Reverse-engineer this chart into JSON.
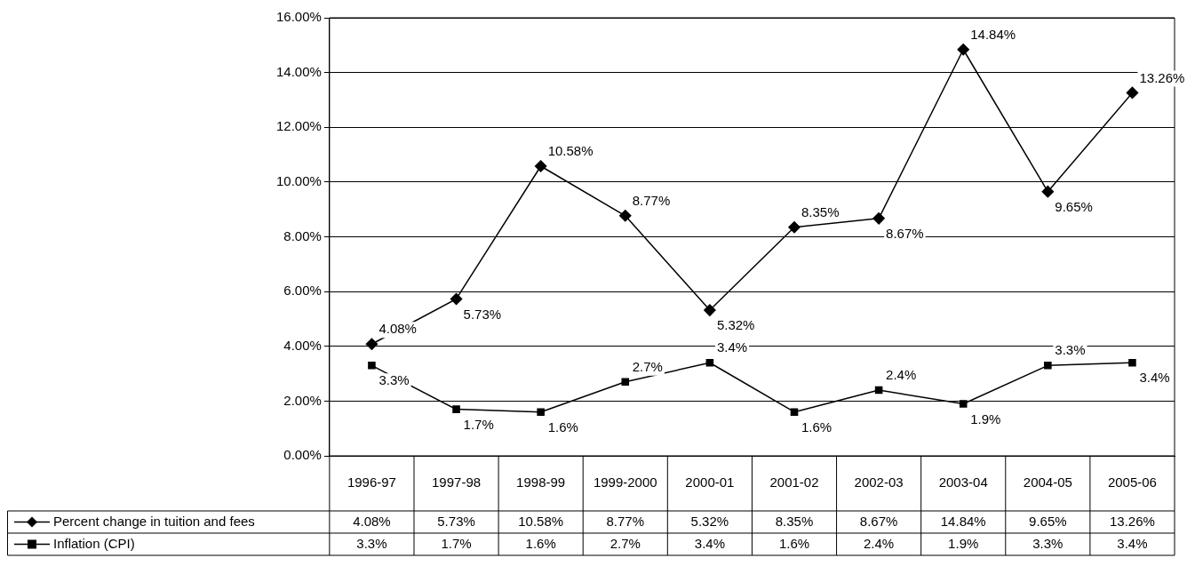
{
  "chart_data": {
    "type": "line",
    "categories": [
      "1996-97",
      "1997-98",
      "1998-99",
      "1999-2000",
      "2000-01",
      "2001-02",
      "2002-03",
      "2003-04",
      "2004-05",
      "2005-06"
    ],
    "series": [
      {
        "name": "Percent change in tuition and fees",
        "color": "#000000",
        "marker": "diamond",
        "values": [
          4.08,
          5.73,
          10.58,
          8.77,
          5.32,
          8.35,
          8.67,
          14.84,
          9.65,
          13.26
        ],
        "value_labels": [
          "4.08%",
          "5.73%",
          "10.58%",
          "8.77%",
          "5.32%",
          "8.35%",
          "8.67%",
          "14.84%",
          "9.65%",
          "13.26%"
        ]
      },
      {
        "name": "Inflation (CPI)",
        "color": "#000000",
        "marker": "square",
        "values": [
          3.3,
          1.7,
          1.6,
          2.7,
          3.4,
          1.6,
          2.4,
          1.9,
          3.3,
          3.4
        ],
        "value_labels": [
          "3.3%",
          "1.7%",
          "1.6%",
          "2.7%",
          "3.4%",
          "1.6%",
          "2.4%",
          "1.9%",
          "3.3%",
          "3.4%"
        ]
      }
    ],
    "ylim": [
      0,
      16
    ],
    "yticks": [
      {
        "value": 0,
        "label": "0.00%"
      },
      {
        "value": 2,
        "label": "2.00%"
      },
      {
        "value": 4,
        "label": "4.00%"
      },
      {
        "value": 6,
        "label": "6.00%"
      },
      {
        "value": 8,
        "label": "8.00%"
      },
      {
        "value": 10,
        "label": "10.00%"
      },
      {
        "value": 12,
        "label": "12.00%"
      },
      {
        "value": 14,
        "label": "14.00%"
      },
      {
        "value": 16,
        "label": "16.00%"
      }
    ],
    "grid": "y",
    "legend": "bottom",
    "line_style": "solid"
  }
}
